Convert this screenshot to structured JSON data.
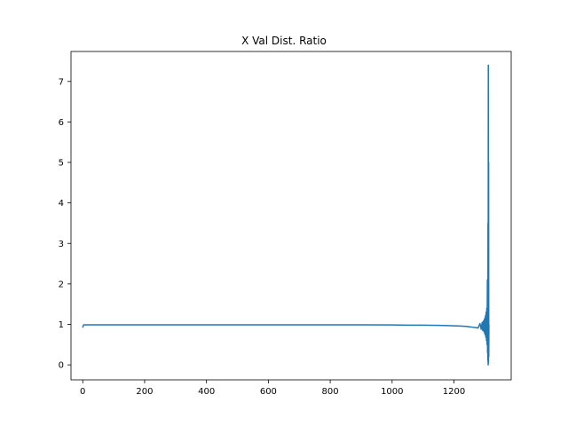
{
  "chart_data": {
    "type": "line",
    "title": "X Val Dist. Ratio",
    "xlabel": "",
    "ylabel": "",
    "xlim": [
      -38,
      1385
    ],
    "ylim": [
      -0.37,
      7.74
    ],
    "xticks": [
      0,
      200,
      400,
      600,
      800,
      1000,
      1200
    ],
    "yticks": [
      0,
      1,
      2,
      3,
      4,
      5,
      6,
      7
    ],
    "grid": false,
    "legend": "none",
    "colors": {
      "line": "#1f77b4",
      "axis": "#000000"
    },
    "series": [
      {
        "x": [
          0,
          2,
          4,
          6,
          10,
          50,
          100,
          200,
          300,
          400,
          500,
          600,
          700,
          800,
          900,
          1000,
          1050,
          1100,
          1150,
          1180,
          1200,
          1220,
          1240,
          1250,
          1260,
          1270,
          1278,
          1284,
          1288,
          1291,
          1293,
          1295,
          1297,
          1298,
          1299,
          1300,
          1301,
          1302,
          1303,
          1304,
          1305,
          1306,
          1307,
          1308,
          1308.5,
          1309,
          1309.5,
          1310,
          1310.5,
          1311,
          1311.5,
          1312,
          1312.5,
          1313
        ],
        "y": [
          0.92,
          0.98,
          0.99,
          0.99,
          0.99,
          0.99,
          0.99,
          0.99,
          0.99,
          0.99,
          0.99,
          0.99,
          0.99,
          0.99,
          0.99,
          0.985,
          0.98,
          0.98,
          0.975,
          0.97,
          0.965,
          0.96,
          0.95,
          0.94,
          0.93,
          0.92,
          0.91,
          1.02,
          0.88,
          1.05,
          0.85,
          1.08,
          0.82,
          1.12,
          0.78,
          1.16,
          0.74,
          1.22,
          0.68,
          1.3,
          0.6,
          1.4,
          0.5,
          2.1,
          0.3,
          1.6,
          0.1,
          3.5,
          0.0,
          7.4,
          0.05,
          5.0,
          0.2,
          1.0
        ]
      }
    ]
  }
}
